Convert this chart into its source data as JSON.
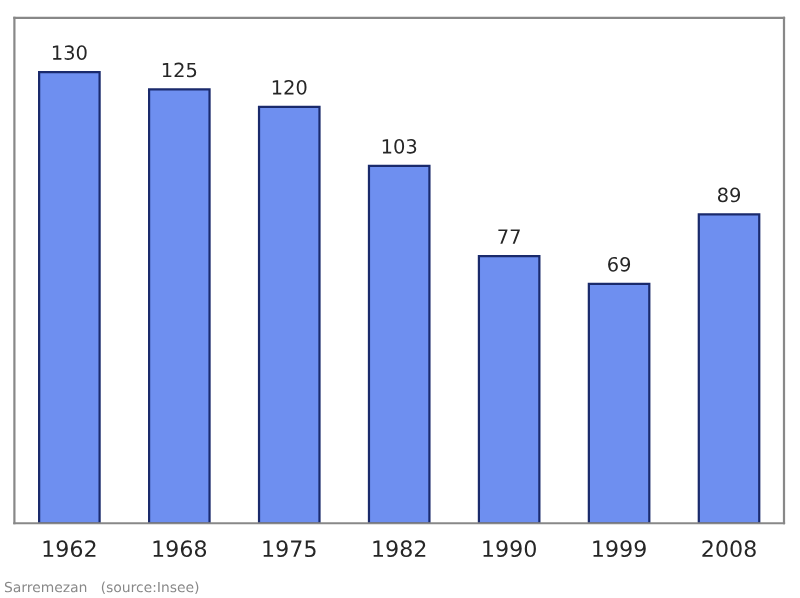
{
  "chart_data": {
    "type": "bar",
    "categories": [
      "1962",
      "1968",
      "1975",
      "1982",
      "1990",
      "1999",
      "2008"
    ],
    "values": [
      130,
      125,
      120,
      103,
      77,
      69,
      89
    ],
    "color": "#6e8ff0",
    "data_labels": true,
    "grid": false,
    "annotations": [
      "Sarremezan   (source:Insee)"
    ]
  }
}
